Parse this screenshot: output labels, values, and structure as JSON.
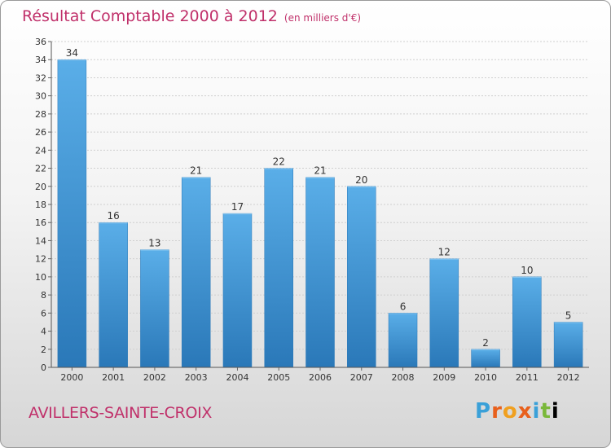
{
  "header": {
    "title": "Résultat Comptable 2000 à 2012",
    "subtitle": "(en milliers d'€)"
  },
  "footer": {
    "location": "AVILLERS-SAINTE-CROIX",
    "brand": [
      "P",
      "r",
      "o",
      "x",
      "i",
      "t",
      "i"
    ]
  },
  "colors": {
    "title": "#c0306a",
    "bar_light": "#5aaee8",
    "bar_dark": "#2a78b8"
  },
  "chart_data": {
    "type": "bar",
    "title": "Résultat Comptable 2000 à 2012",
    "xlabel": "",
    "ylabel": "",
    "categories": [
      "2000",
      "2001",
      "2002",
      "2003",
      "2004",
      "2005",
      "2006",
      "2007",
      "2008",
      "2009",
      "2010",
      "2011",
      "2012"
    ],
    "values": [
      34,
      16,
      13,
      21,
      17,
      22,
      21,
      20,
      6,
      12,
      2,
      10,
      5
    ],
    "ylim": [
      0,
      36
    ],
    "yticks": [
      0,
      2,
      4,
      6,
      8,
      10,
      12,
      14,
      16,
      18,
      20,
      22,
      24,
      26,
      28,
      30,
      32,
      34,
      36
    ],
    "grid": true
  }
}
